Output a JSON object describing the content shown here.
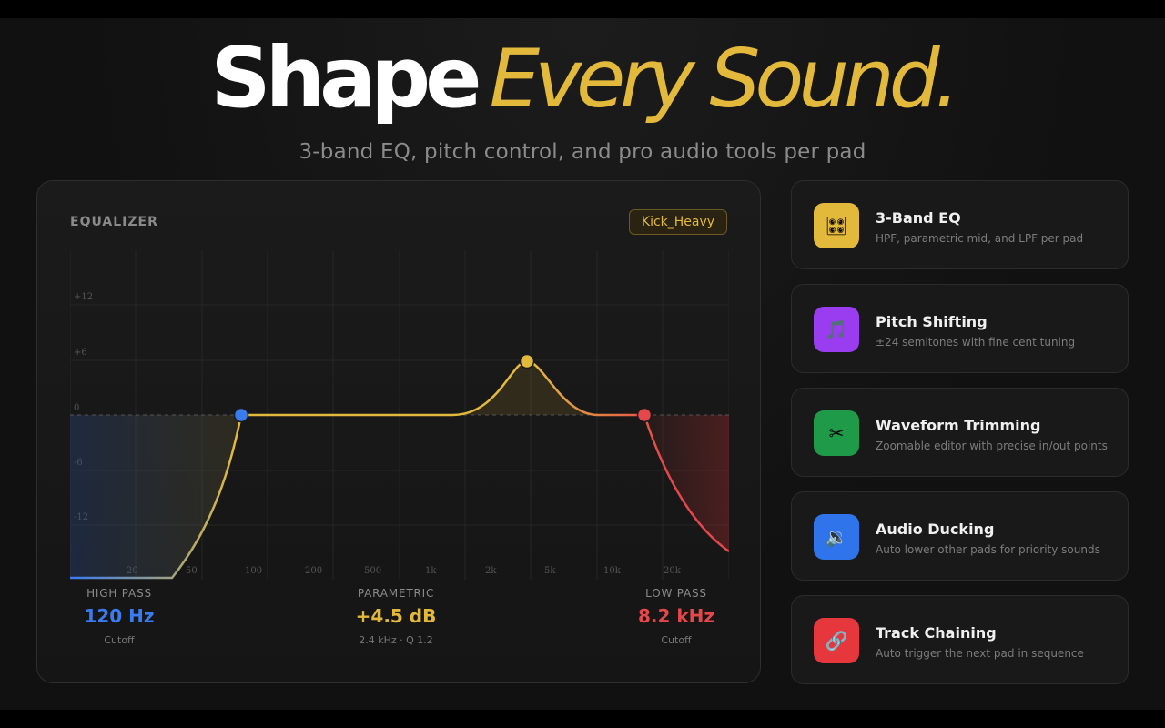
{
  "hero": {
    "title_part1": "Shape",
    "title_part2": "Every Sound.",
    "subtitle": "3-band EQ, pitch control, and pro audio tools per pad"
  },
  "equalizer": {
    "title": "EQUALIZER",
    "preset": "Kick_Heavy",
    "db_labels": [
      "+12",
      "+6",
      "0",
      "-6",
      "-12"
    ],
    "freq_labels": [
      "20",
      "50",
      "100",
      "200",
      "500",
      "1k",
      "2k",
      "5k",
      "10k",
      "20k"
    ],
    "bands": {
      "high_pass": {
        "label": "HIGH PASS",
        "value": "120 Hz",
        "caption": "Cutoff"
      },
      "parametric": {
        "label": "PARAMETRIC",
        "value": "+4.5 dB",
        "caption": "2.4 kHz · Q 1.2"
      },
      "low_pass": {
        "label": "LOW PASS",
        "value": "8.2 kHz",
        "caption": "Cutoff"
      }
    },
    "colors": {
      "high_pass": "#3a7bef",
      "parametric": "#e3b93c",
      "low_pass": "#e5474a"
    }
  },
  "features": [
    {
      "title": "3-Band EQ",
      "desc": "HPF, parametric mid, and LPF per pad",
      "icon": "sliders-icon",
      "color": "#e3b93c",
      "glyph": "🎛"
    },
    {
      "title": "Pitch Shifting",
      "desc": "±24 semitones with fine cent tuning",
      "icon": "music-note-icon",
      "color": "#9a3df0",
      "glyph": "🎵"
    },
    {
      "title": "Waveform Trimming",
      "desc": "Zoomable editor with precise in/out points",
      "icon": "scissors-icon",
      "color": "#1f9a48",
      "glyph": "✂"
    },
    {
      "title": "Audio Ducking",
      "desc": "Auto lower other pads for priority sounds",
      "icon": "speaker-icon",
      "color": "#2f74ea",
      "glyph": "🔉"
    },
    {
      "title": "Track Chaining",
      "desc": "Auto trigger the next pad in sequence",
      "icon": "link-icon",
      "color": "#e6373d",
      "glyph": "🔗"
    }
  ]
}
